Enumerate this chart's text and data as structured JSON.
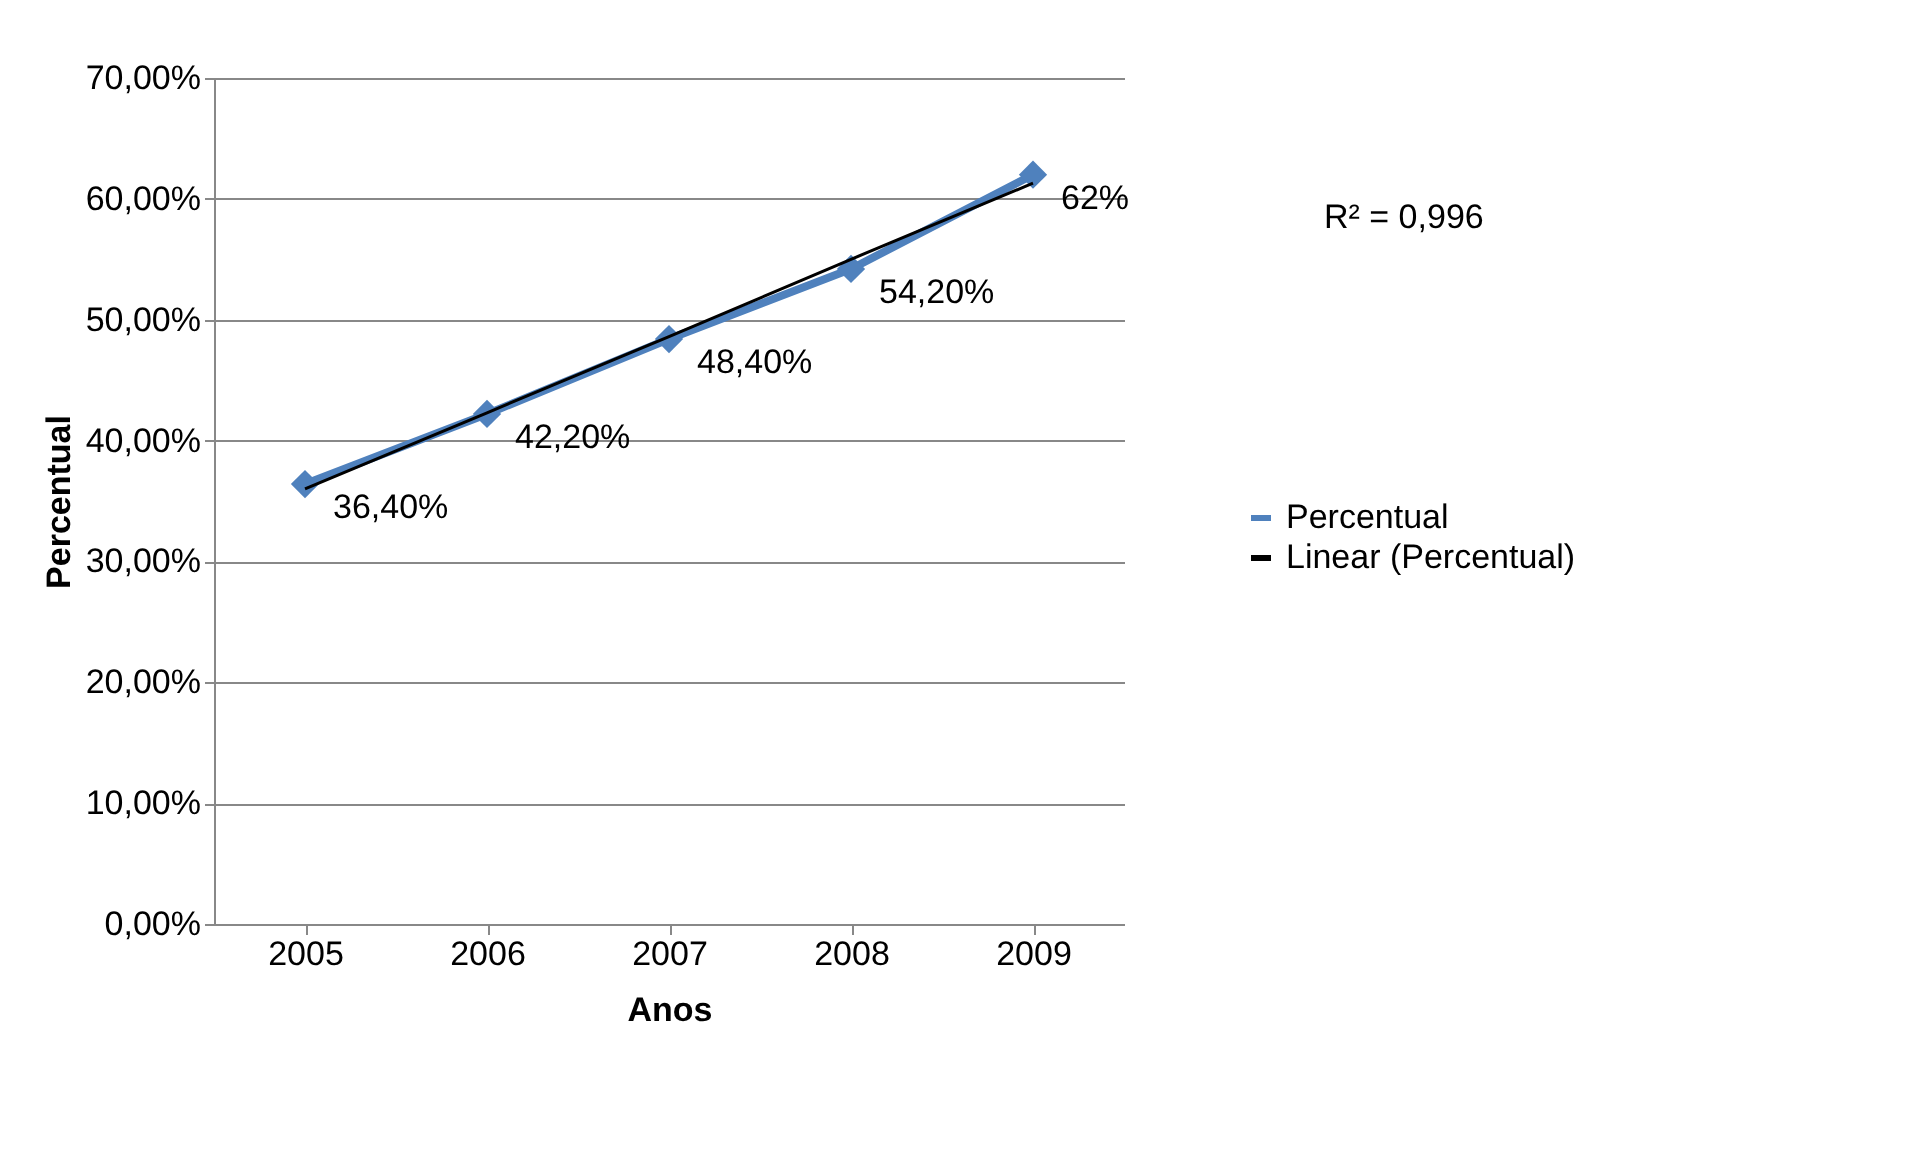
{
  "chart_data": {
    "type": "line",
    "xlabel": "Anos",
    "ylabel": "Percentual",
    "categories": [
      "2005",
      "2006",
      "2007",
      "2008",
      "2009"
    ],
    "series": [
      {
        "name": "Percentual",
        "color": "#4f81bd",
        "marker": "diamond",
        "values": [
          36.4,
          42.2,
          48.4,
          54.2,
          62
        ],
        "value_labels": [
          "36,40%",
          "42,20%",
          "48,40%",
          "54,20%",
          "62%"
        ]
      },
      {
        "name": "Linear (Percentual)",
        "color": "#000000",
        "marker": "none",
        "values": [
          36.0,
          42.3,
          48.6,
          55.0,
          61.3
        ]
      }
    ],
    "ylim": [
      0,
      70
    ],
    "yticks": [
      {
        "value": 0,
        "label": "0,00%"
      },
      {
        "value": 10,
        "label": "10,00%"
      },
      {
        "value": 20,
        "label": "20,00%"
      },
      {
        "value": 30,
        "label": "30,00%"
      },
      {
        "value": 40,
        "label": "40,00%"
      },
      {
        "value": 50,
        "label": "50,00%"
      },
      {
        "value": 60,
        "label": "60,00%"
      },
      {
        "value": 70,
        "label": "70,00%"
      }
    ],
    "grid": "y",
    "legend": "right",
    "annotations": [
      "R² = 0,996"
    ]
  }
}
